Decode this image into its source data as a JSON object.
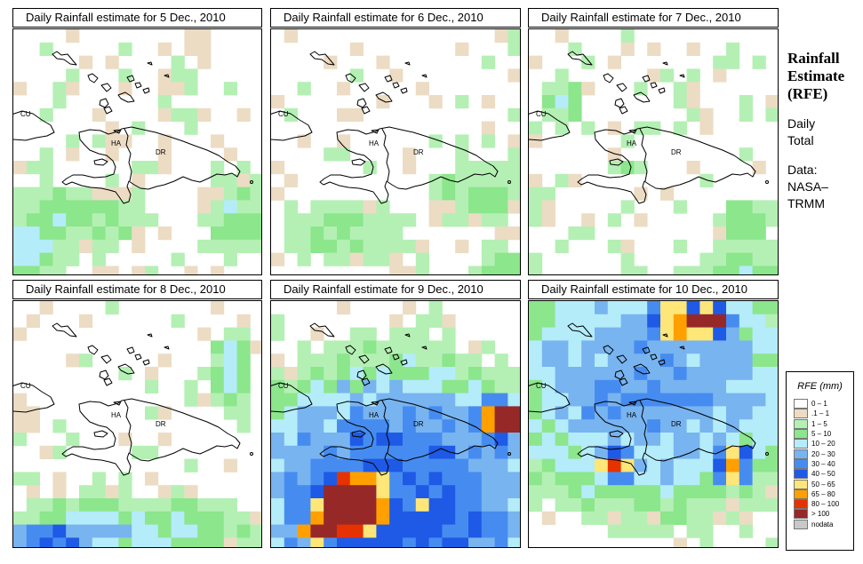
{
  "panels": [
    {
      "title": "Daily Rainfall estimate for  5 Dec., 2010"
    },
    {
      "title": "Daily Rainfall estimate for  6 Dec., 2010"
    },
    {
      "title": "Daily Rainfall estimate for  7 Dec., 2010"
    },
    {
      "title": "Daily Rainfall estimate for  8 Dec., 2010"
    },
    {
      "title": "Daily Rainfall estimate for  9 Dec., 2010"
    },
    {
      "title": "Daily Rainfall estimate for  10 Dec., 2010"
    }
  ],
  "map_labels": {
    "cu": "CU",
    "ha": "HA",
    "dr": "DR"
  },
  "sidebar": {
    "title_lines": [
      "Rainfall",
      "Estimate",
      "(RFE)"
    ],
    "line1": "Daily",
    "line2": "Total",
    "line3": "Data:",
    "line4": "NASA–",
    "line5": "TRMM"
  },
  "legend": {
    "title": "RFE (mm)",
    "items": [
      {
        "label": "0 – 1",
        "color": "#ffffff"
      },
      {
        "label": ".1 – 1",
        "color": "#ecdcc4"
      },
      {
        "label": "1 – 5",
        "color": "#b4f0b4"
      },
      {
        "label": "5 – 10",
        "color": "#8ce68c"
      },
      {
        "label": "10 – 20",
        "color": "#b4ecfa"
      },
      {
        "label": "20 – 30",
        "color": "#78b4f0"
      },
      {
        "label": "30 – 40",
        "color": "#468cf0"
      },
      {
        "label": "40 – 50",
        "color": "#1e5ae6"
      },
      {
        "label": "50 – 65",
        "color": "#ffe678"
      },
      {
        "label": "65 – 80",
        "color": "#ffa000"
      },
      {
        "label": "80 – 100",
        "color": "#e63200"
      },
      {
        "label": "> 100",
        "color": "#962828"
      },
      {
        "label": "nodata",
        "color": "#c8c8c8"
      }
    ]
  }
}
